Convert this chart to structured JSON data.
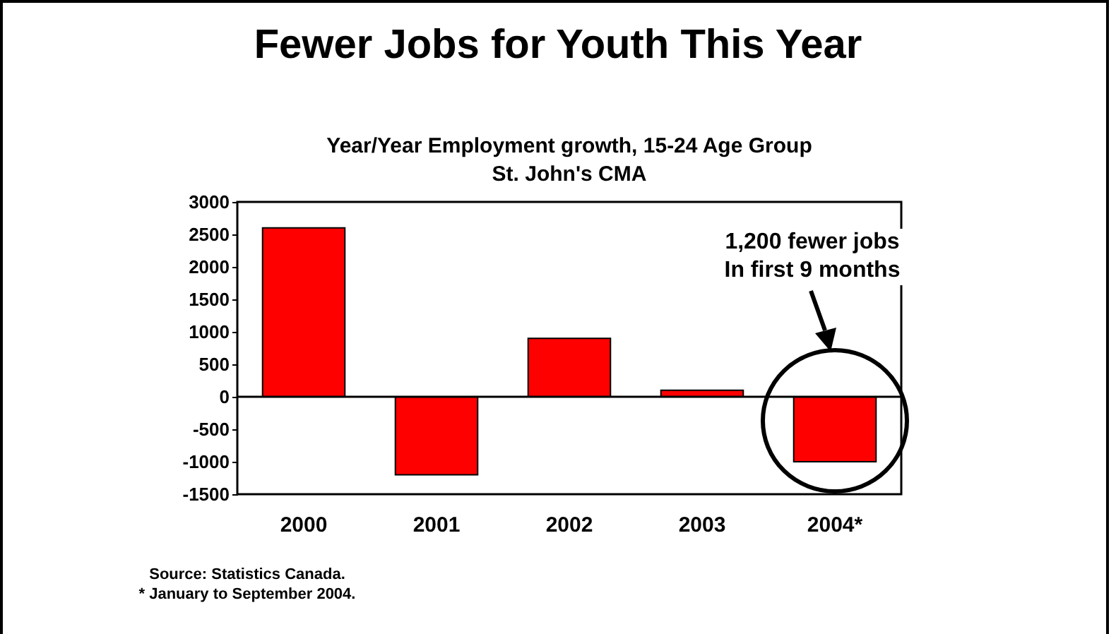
{
  "chart_data": {
    "type": "bar",
    "title": "Fewer Jobs for Youth This Year",
    "subtitle": "Year/Year Employment growth, 15-24 Age Group\nSt. John's CMA",
    "categories": [
      "2000",
      "2001",
      "2002",
      "2003",
      "2004*"
    ],
    "values": [
      2600,
      -1200,
      900,
      100,
      -1000
    ],
    "color": "#ff0000",
    "ylim": [
      -1500,
      3000
    ],
    "yticks": [
      -1500,
      -1000,
      -500,
      0,
      500,
      1000,
      1500,
      2000,
      2500,
      3000
    ],
    "grid": false,
    "ref_lines": [
      {
        "axis": "y",
        "value": 0
      }
    ],
    "annotations": [
      "1,200 fewer jobs\nIn first 9 months",
      "Source: Statistics Canada.\n* January to September 2004."
    ]
  }
}
